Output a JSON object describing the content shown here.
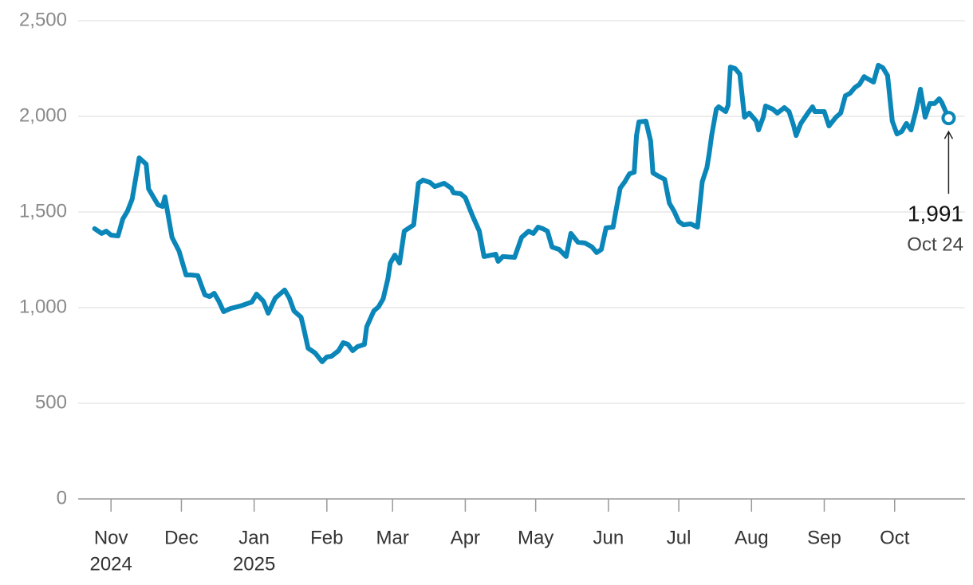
{
  "chart_data": {
    "type": "line",
    "x": [
      "2024-10-25",
      "2024-10-28",
      "2024-10-30",
      "2024-11-01",
      "2024-11-04",
      "2024-11-06",
      "2024-11-08",
      "2024-11-10",
      "2024-11-11",
      "2024-11-13",
      "2024-11-16",
      "2024-11-17",
      "2024-11-21",
      "2024-11-23",
      "2024-11-24",
      "2024-11-27",
      "2024-11-30",
      "2024-12-03",
      "2024-12-05",
      "2024-12-08",
      "2024-12-11",
      "2024-12-13",
      "2024-12-15",
      "2024-12-17",
      "2024-12-19",
      "2024-12-22",
      "2024-12-26",
      "2024-12-31",
      "2025-01-02",
      "2025-01-05",
      "2025-01-07",
      "2025-01-10",
      "2025-01-14",
      "2025-01-16",
      "2025-01-18",
      "2025-01-21",
      "2025-01-22",
      "2025-01-24",
      "2025-01-27",
      "2025-01-30",
      "2025-02-01",
      "2025-02-03",
      "2025-02-06",
      "2025-02-08",
      "2025-02-10",
      "2025-02-12",
      "2025-02-14",
      "2025-02-17",
      "2025-02-18",
      "2025-02-21",
      "2025-02-23",
      "2025-02-25",
      "2025-02-27",
      "2025-02-28",
      "2025-03-02",
      "2025-03-04",
      "2025-03-06",
      "2025-03-10",
      "2025-03-12",
      "2025-03-14",
      "2025-03-17",
      "2025-03-19",
      "2025-03-23",
      "2025-03-26",
      "2025-03-27",
      "2025-03-30",
      "2025-04-01",
      "2025-04-04",
      "2025-04-07",
      "2025-04-09",
      "2025-04-14",
      "2025-04-15",
      "2025-04-17",
      "2025-04-22",
      "2025-04-25",
      "2025-04-28",
      "2025-04-30",
      "2025-05-02",
      "2025-05-04",
      "2025-05-06",
      "2025-05-08",
      "2025-05-11",
      "2025-05-14",
      "2025-05-16",
      "2025-05-19",
      "2025-05-22",
      "2025-05-25",
      "2025-05-27",
      "2025-05-29",
      "2025-05-31",
      "2025-06-03",
      "2025-06-04",
      "2025-06-06",
      "2025-06-08",
      "2025-06-10",
      "2025-06-12",
      "2025-06-13",
      "2025-06-14",
      "2025-06-17",
      "2025-06-19",
      "2025-06-20",
      "2025-06-23",
      "2025-06-25",
      "2025-06-27",
      "2025-06-29",
      "2025-07-01",
      "2025-07-03",
      "2025-07-06",
      "2025-07-09",
      "2025-07-11",
      "2025-07-13",
      "2025-07-14",
      "2025-07-15",
      "2025-07-17",
      "2025-07-18",
      "2025-07-21",
      "2025-07-22",
      "2025-07-23",
      "2025-07-25",
      "2025-07-27",
      "2025-07-29",
      "2025-07-31",
      "2025-08-03",
      "2025-08-04",
      "2025-08-06",
      "2025-08-07",
      "2025-08-10",
      "2025-08-12",
      "2025-08-15",
      "2025-08-17",
      "2025-08-19",
      "2025-08-20",
      "2025-08-22",
      "2025-08-25",
      "2025-08-27",
      "2025-08-28",
      "2025-09-01",
      "2025-09-03",
      "2025-09-06",
      "2025-09-08",
      "2025-09-10",
      "2025-09-12",
      "2025-09-14",
      "2025-09-16",
      "2025-09-18",
      "2025-09-19",
      "2025-09-22",
      "2025-09-24",
      "2025-09-26",
      "2025-09-28",
      "2025-09-30",
      "2025-10-02",
      "2025-10-04",
      "2025-10-06",
      "2025-10-08",
      "2025-10-10",
      "2025-10-12",
      "2025-10-14",
      "2025-10-16",
      "2025-10-18",
      "2025-10-20",
      "2025-10-21",
      "2025-10-24"
    ],
    "series": [
      {
        "color": "#0a86b8",
        "values": [
          1413,
          1388,
          1400,
          1379,
          1375,
          1463,
          1504,
          1567,
          1638,
          1783,
          1750,
          1621,
          1538,
          1529,
          1579,
          1367,
          1296,
          1171,
          1171,
          1167,
          1067,
          1058,
          1075,
          1033,
          979,
          996,
          1008,
          1029,
          1071,
          1033,
          971,
          1050,
          1092,
          1050,
          983,
          950,
          900,
          788,
          763,
          717,
          742,
          746,
          775,
          817,
          808,
          775,
          796,
          808,
          900,
          983,
          1004,
          1046,
          1150,
          1233,
          1275,
          1233,
          1400,
          1433,
          1650,
          1667,
          1654,
          1633,
          1650,
          1625,
          1600,
          1596,
          1575,
          1483,
          1400,
          1267,
          1279,
          1242,
          1267,
          1263,
          1367,
          1400,
          1388,
          1421,
          1413,
          1400,
          1317,
          1304,
          1267,
          1388,
          1342,
          1338,
          1317,
          1288,
          1304,
          1417,
          1421,
          1492,
          1625,
          1658,
          1700,
          1708,
          1900,
          1971,
          1975,
          1871,
          1704,
          1683,
          1671,
          1546,
          1504,
          1450,
          1433,
          1438,
          1421,
          1658,
          1733,
          1808,
          1900,
          2038,
          2050,
          2025,
          2058,
          2258,
          2250,
          2221,
          1996,
          2017,
          1975,
          1929,
          1996,
          2054,
          2038,
          2017,
          2046,
          2025,
          1950,
          1900,
          1963,
          2017,
          2050,
          2025,
          2025,
          1950,
          1996,
          2017,
          2108,
          2121,
          2150,
          2167,
          2208,
          2200,
          2179,
          2267,
          2254,
          2213,
          1975,
          1908,
          1921,
          1963,
          1929,
          2025,
          2142,
          1996,
          2067,
          2067,
          2092,
          2075,
          1991
        ]
      }
    ],
    "xlim": [
      "2024-10-18",
      "2025-10-31"
    ],
    "xticks": [
      {
        "value": "2024-11-01",
        "label": "Nov"
      },
      {
        "value": "2024-12-01",
        "label": "Dec"
      },
      {
        "value": "2025-01-01",
        "label": "Jan"
      },
      {
        "value": "2025-02-01",
        "label": "Feb"
      },
      {
        "value": "2025-03-01",
        "label": "Mar"
      },
      {
        "value": "2025-04-01",
        "label": "Apr"
      },
      {
        "value": "2025-05-01",
        "label": "May"
      },
      {
        "value": "2025-06-01",
        "label": "Jun"
      },
      {
        "value": "2025-07-01",
        "label": "Jul"
      },
      {
        "value": "2025-08-01",
        "label": "Aug"
      },
      {
        "value": "2025-09-01",
        "label": "Sep"
      },
      {
        "value": "2025-10-01",
        "label": "Oct"
      }
    ],
    "xtick_years": [
      {
        "value": "2024-11-01",
        "label": "2024"
      },
      {
        "value": "2025-01-01",
        "label": "2025"
      }
    ],
    "ylim": [
      0,
      2500
    ],
    "yticks": [
      0,
      500,
      {
        "value": 1000,
        "label": "1,000"
      },
      {
        "value": 1500,
        "label": "1,500"
      },
      {
        "value": 2000,
        "label": "2,000"
      },
      {
        "value": 2500,
        "label": "2,500"
      }
    ],
    "grid": true,
    "annotation": {
      "text": "1,991",
      "date": "Oct 24"
    }
  }
}
